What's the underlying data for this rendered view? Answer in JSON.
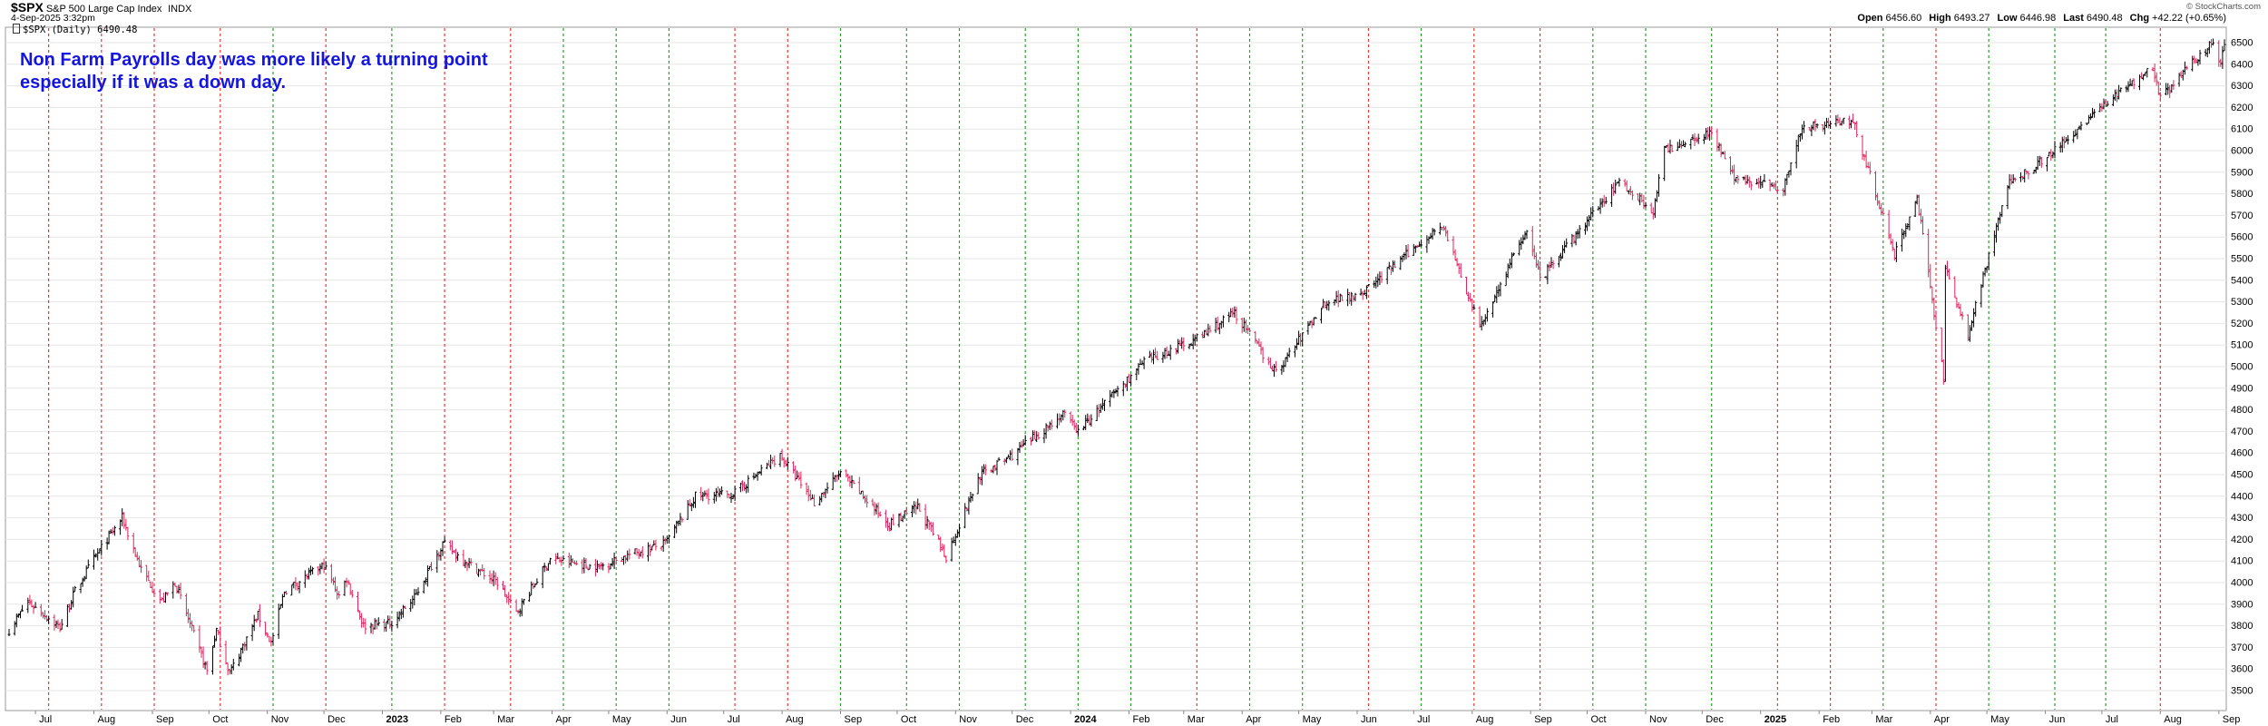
{
  "header": {
    "symbol": "$SPX",
    "name": "S&P 500 Large Cap Index",
    "exchange": "INDX",
    "date": "4-Sep-2025 3:32pm",
    "legend": "$SPX (Daily) 6490.48",
    "open_label": "Open",
    "open": "6456.60",
    "high_label": "High",
    "high": "6493.27",
    "low_label": "Low",
    "low": "6446.98",
    "last_label": "Last",
    "last": "6490.48",
    "chg_label": "Chg",
    "chg": "+42.22 (+0.65%)",
    "watermark": "© StockCharts.com"
  },
  "annotation": {
    "line1": "Non Farm Payrolls day was more likely a turning point",
    "line2": "especially if it was a down day."
  },
  "chart_data": {
    "type": "ohlc",
    "title": "$SPX S&P 500 Large Cap Index",
    "ylim": [
      3500,
      6500
    ],
    "y_ticks": [
      3500,
      3600,
      3700,
      3800,
      3900,
      4000,
      4100,
      4200,
      4300,
      4400,
      4500,
      4600,
      4700,
      4800,
      4900,
      5000,
      5100,
      5200,
      5300,
      5400,
      5500,
      5600,
      5700,
      5800,
      5900,
      6000,
      6100,
      6200,
      6300,
      6400,
      6500
    ],
    "x_labels": [
      "Jul",
      "Aug",
      "Sep",
      "Oct",
      "Nov",
      "Dec",
      "2023",
      "Feb",
      "Mar",
      "Apr",
      "May",
      "Jun",
      "Jul",
      "Aug",
      "Sep",
      "Oct",
      "Nov",
      "Dec",
      "2024",
      "Feb",
      "Mar",
      "Apr",
      "May",
      "Jun",
      "Jul",
      "Aug",
      "Sep",
      "Oct",
      "Nov",
      "Dec",
      "2025",
      "Feb",
      "Mar",
      "Apr",
      "May",
      "Jun",
      "Jul",
      "Aug",
      "Sep"
    ],
    "colors": {
      "up": "#000000",
      "down": "#e0245e",
      "nfp_down": "#e53935",
      "nfp_up": "#2e9e2e",
      "grid": "#e6e6e6"
    },
    "nfp_days": [
      {
        "date": "2022-07-08",
        "color": "red"
      },
      {
        "date": "2022-08-05",
        "color": "red"
      },
      {
        "date": "2022-09-02",
        "color": "red"
      },
      {
        "date": "2022-10-07",
        "color": "red"
      },
      {
        "date": "2022-11-04",
        "color": "green"
      },
      {
        "date": "2022-12-02",
        "color": "red"
      },
      {
        "date": "2023-01-06",
        "color": "green"
      },
      {
        "date": "2023-02-03",
        "color": "red"
      },
      {
        "date": "2023-03-10",
        "color": "red"
      },
      {
        "date": "2023-04-07",
        "color": "green"
      },
      {
        "date": "2023-05-05",
        "color": "green"
      },
      {
        "date": "2023-06-02",
        "color": "green"
      },
      {
        "date": "2023-07-07",
        "color": "red"
      },
      {
        "date": "2023-08-04",
        "color": "red"
      },
      {
        "date": "2023-09-01",
        "color": "green"
      },
      {
        "date": "2023-10-06",
        "color": "green"
      },
      {
        "date": "2023-11-03",
        "color": "green"
      },
      {
        "date": "2023-12-08",
        "color": "green"
      },
      {
        "date": "2024-01-05",
        "color": "green"
      },
      {
        "date": "2024-02-02",
        "color": "green"
      },
      {
        "date": "2024-03-08",
        "color": "red"
      },
      {
        "date": "2024-04-05",
        "color": "green"
      },
      {
        "date": "2024-05-03",
        "color": "green"
      },
      {
        "date": "2024-06-07",
        "color": "red"
      },
      {
        "date": "2024-07-05",
        "color": "green"
      },
      {
        "date": "2024-08-02",
        "color": "red"
      },
      {
        "date": "2024-09-06",
        "color": "red"
      },
      {
        "date": "2024-10-04",
        "color": "green"
      },
      {
        "date": "2024-11-01",
        "color": "green"
      },
      {
        "date": "2024-12-06",
        "color": "green"
      },
      {
        "date": "2025-01-10",
        "color": "red"
      },
      {
        "date": "2025-02-07",
        "color": "red"
      },
      {
        "date": "2025-03-07",
        "color": "green"
      },
      {
        "date": "2025-04-04",
        "color": "red"
      },
      {
        "date": "2025-05-02",
        "color": "green"
      },
      {
        "date": "2025-06-06",
        "color": "green"
      },
      {
        "date": "2025-07-03",
        "color": "green"
      },
      {
        "date": "2025-08-01",
        "color": "red"
      }
    ],
    "price_path": [
      [
        "2022-06-17",
        3780
      ],
      [
        "2022-06-27",
        3910
      ],
      [
        "2022-07-06",
        3850
      ],
      [
        "2022-07-14",
        3790
      ],
      [
        "2022-07-22",
        3960
      ],
      [
        "2022-08-01",
        4110
      ],
      [
        "2022-08-16",
        4300
      ],
      [
        "2022-08-26",
        4060
      ],
      [
        "2022-09-06",
        3910
      ],
      [
        "2022-09-13",
        4000
      ],
      [
        "2022-09-30",
        3590
      ],
      [
        "2022-10-05",
        3780
      ],
      [
        "2022-10-12",
        3580
      ],
      [
        "2022-10-27",
        3850
      ],
      [
        "2022-11-03",
        3720
      ],
      [
        "2022-11-10",
        3960
      ],
      [
        "2022-12-01",
        4080
      ],
      [
        "2022-12-09",
        3940
      ],
      [
        "2022-12-13",
        4020
      ],
      [
        "2022-12-22",
        3800
      ],
      [
        "2023-01-05",
        3810
      ],
      [
        "2023-01-18",
        3930
      ],
      [
        "2023-02-02",
        4180
      ],
      [
        "2023-02-17",
        4080
      ],
      [
        "2023-03-03",
        4000
      ],
      [
        "2023-03-13",
        3860
      ],
      [
        "2023-03-31",
        4110
      ],
      [
        "2023-04-25",
        4070
      ],
      [
        "2023-05-12",
        4130
      ],
      [
        "2023-05-31",
        4180
      ],
      [
        "2023-06-16",
        4400
      ],
      [
        "2023-07-06",
        4410
      ],
      [
        "2023-07-31",
        4590
      ],
      [
        "2023-08-18",
        4370
      ],
      [
        "2023-09-01",
        4510
      ],
      [
        "2023-09-27",
        4270
      ],
      [
        "2023-10-12",
        4350
      ],
      [
        "2023-10-27",
        4120
      ],
      [
        "2023-11-14",
        4500
      ],
      [
        "2023-12-01",
        4590
      ],
      [
        "2023-12-28",
        4780
      ],
      [
        "2024-01-05",
        4700
      ],
      [
        "2024-02-09",
        5020
      ],
      [
        "2024-03-08",
        5130
      ],
      [
        "2024-03-28",
        5250
      ],
      [
        "2024-04-19",
        4970
      ],
      [
        "2024-05-15",
        5300
      ],
      [
        "2024-06-05",
        5350
      ],
      [
        "2024-07-16",
        5660
      ],
      [
        "2024-08-05",
        5180
      ],
      [
        "2024-08-30",
        5640
      ],
      [
        "2024-09-06",
        5400
      ],
      [
        "2024-10-18",
        5860
      ],
      [
        "2024-11-05",
        5720
      ],
      [
        "2024-11-11",
        6000
      ],
      [
        "2024-12-06",
        6090
      ],
      [
        "2024-12-18",
        5870
      ],
      [
        "2025-01-13",
        5830
      ],
      [
        "2025-01-23",
        6110
      ],
      [
        "2025-02-19",
        6140
      ],
      [
        "2025-03-13",
        5520
      ],
      [
        "2025-03-25",
        5780
      ],
      [
        "2025-04-08",
        4950
      ],
      [
        "2025-04-09",
        5450
      ],
      [
        "2025-04-21",
        5150
      ],
      [
        "2025-05-12",
        5840
      ],
      [
        "2025-06-06",
        6000
      ],
      [
        "2025-06-30",
        6200
      ],
      [
        "2025-07-28",
        6390
      ],
      [
        "2025-08-01",
        6240
      ],
      [
        "2025-08-28",
        6500
      ],
      [
        "2025-09-02",
        6410
      ],
      [
        "2025-09-04",
        6490
      ]
    ]
  }
}
